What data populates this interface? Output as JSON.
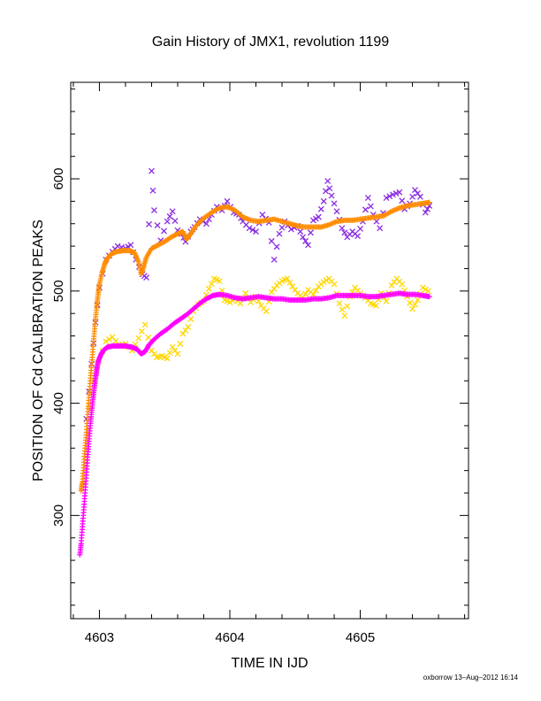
{
  "chart_data": {
    "type": "scatter",
    "title": "Gain History of JMX1, revolution 1199",
    "xlabel": "TIME IN IJD",
    "ylabel": "POSITION OF Cd CALIBRATION PEAKS",
    "xlim": [
      4602.78,
      4605.83
    ],
    "ylim": [
      208,
      686
    ],
    "x_ticks": [
      4603,
      4604,
      4605
    ],
    "y_ticks": [
      300,
      400,
      500,
      600
    ],
    "x_tick_labels": [
      "4603",
      "4604",
      "4605"
    ],
    "y_tick_labels": [
      "300",
      "400",
      "500",
      "600"
    ],
    "grid": false,
    "legend": "none",
    "series": [
      {
        "color": "#8a2be2",
        "marker": "x",
        "points": [
          [
            4602.9,
            386
          ],
          [
            4602.94,
            435
          ],
          [
            4602.97,
            472
          ],
          [
            4603.0,
            503
          ],
          [
            4603.05,
            528
          ],
          [
            4603.1,
            535
          ],
          [
            4603.14,
            540
          ],
          [
            4603.2,
            538
          ],
          [
            4603.24,
            541
          ],
          [
            4603.28,
            528
          ],
          [
            4603.33,
            515
          ],
          [
            4603.36,
            512
          ],
          [
            4603.4,
            607
          ],
          [
            4603.42,
            572
          ],
          [
            4603.47,
            545
          ],
          [
            4603.52,
            562
          ],
          [
            4603.56,
            571
          ],
          [
            4603.6,
            554
          ],
          [
            4603.63,
            551
          ],
          [
            4603.66,
            544
          ],
          [
            4603.7,
            553
          ],
          [
            4603.73,
            557
          ],
          [
            4603.77,
            564
          ],
          [
            4603.82,
            560
          ],
          [
            4603.86,
            568
          ],
          [
            4603.9,
            575
          ],
          [
            4603.94,
            572
          ],
          [
            4603.98,
            580
          ],
          [
            4604.03,
            570
          ],
          [
            4604.07,
            568
          ],
          [
            4604.1,
            562
          ],
          [
            4604.15,
            556
          ],
          [
            4604.2,
            553
          ],
          [
            4604.25,
            568
          ],
          [
            4604.3,
            561
          ],
          [
            4604.34,
            528
          ],
          [
            4604.38,
            551
          ],
          [
            4604.42,
            562
          ],
          [
            4604.47,
            555
          ],
          [
            4604.52,
            558
          ],
          [
            4604.56,
            548
          ],
          [
            4604.6,
            541
          ],
          [
            4604.64,
            563
          ],
          [
            4604.68,
            566
          ],
          [
            4604.72,
            580
          ],
          [
            4604.75,
            598
          ],
          [
            4604.78,
            585
          ],
          [
            4604.82,
            571
          ],
          [
            4604.86,
            556
          ],
          [
            4604.9,
            548
          ],
          [
            4604.94,
            553
          ],
          [
            4604.98,
            549
          ],
          [
            4605.02,
            562
          ],
          [
            4605.06,
            583
          ],
          [
            4605.1,
            568
          ],
          [
            4605.15,
            556
          ],
          [
            4605.2,
            583
          ],
          [
            4605.25,
            586
          ],
          [
            4605.3,
            588
          ],
          [
            4605.34,
            573
          ],
          [
            4605.38,
            578
          ],
          [
            4605.42,
            590
          ],
          [
            4605.46,
            584
          ],
          [
            4605.5,
            570
          ],
          [
            4605.53,
            576
          ]
        ]
      },
      {
        "color": "#ffd700",
        "marker": "x",
        "points": [
          [
            4602.92,
            398
          ],
          [
            4602.96,
            420
          ],
          [
            4603.0,
            438
          ],
          [
            4603.05,
            455
          ],
          [
            4603.1,
            459
          ],
          [
            4603.15,
            452
          ],
          [
            4603.2,
            453
          ],
          [
            4603.25,
            447
          ],
          [
            4603.3,
            458
          ],
          [
            4603.35,
            470
          ],
          [
            4603.4,
            447
          ],
          [
            4603.44,
            441
          ],
          [
            4603.48,
            442
          ],
          [
            4603.52,
            440
          ],
          [
            4603.56,
            450
          ],
          [
            4603.6,
            444
          ],
          [
            4603.64,
            462
          ],
          [
            4603.68,
            468
          ],
          [
            4603.72,
            482
          ],
          [
            4603.76,
            488
          ],
          [
            4603.8,
            491
          ],
          [
            4603.84,
            502
          ],
          [
            4603.88,
            511
          ],
          [
            4603.92,
            509
          ],
          [
            4603.96,
            492
          ],
          [
            4604.0,
            490
          ],
          [
            4604.04,
            493
          ],
          [
            4604.08,
            489
          ],
          [
            4604.12,
            498
          ],
          [
            4604.16,
            490
          ],
          [
            4604.2,
            495
          ],
          [
            4604.24,
            487
          ],
          [
            4604.28,
            482
          ],
          [
            4604.32,
            499
          ],
          [
            4604.36,
            505
          ],
          [
            4604.4,
            509
          ],
          [
            4604.44,
            511
          ],
          [
            4604.48,
            504
          ],
          [
            4604.52,
            498
          ],
          [
            4604.56,
            494
          ],
          [
            4604.6,
            501
          ],
          [
            4604.64,
            497
          ],
          [
            4604.68,
            504
          ],
          [
            4604.72,
            508
          ],
          [
            4604.76,
            511
          ],
          [
            4604.8,
            506
          ],
          [
            4604.84,
            489
          ],
          [
            4604.88,
            478
          ],
          [
            4604.92,
            495
          ],
          [
            4604.96,
            503
          ],
          [
            4605.0,
            498
          ],
          [
            4605.04,
            494
          ],
          [
            4605.08,
            489
          ],
          [
            4605.12,
            487
          ],
          [
            4605.16,
            498
          ],
          [
            4605.2,
            491
          ],
          [
            4605.24,
            505
          ],
          [
            4605.28,
            511
          ],
          [
            4605.32,
            506
          ],
          [
            4605.36,
            495
          ],
          [
            4605.4,
            484
          ],
          [
            4605.44,
            492
          ],
          [
            4605.48,
            503
          ],
          [
            4605.52,
            500
          ]
        ]
      },
      {
        "color": "#ff8c00",
        "marker": "+",
        "points": [
          [
            4602.86,
            322
          ],
          [
            4602.87,
            330
          ],
          [
            4602.88,
            345
          ],
          [
            4602.89,
            360
          ],
          [
            4602.9,
            374
          ],
          [
            4602.91,
            390
          ],
          [
            4602.92,
            405
          ],
          [
            4602.93,
            420
          ],
          [
            4602.94,
            434
          ],
          [
            4602.95,
            448
          ],
          [
            4602.96,
            462
          ],
          [
            4602.97,
            475
          ],
          [
            4602.98,
            487
          ],
          [
            4602.99,
            497
          ],
          [
            4603.0,
            506
          ],
          [
            4603.02,
            516
          ],
          [
            4603.04,
            524
          ],
          [
            4603.06,
            529
          ],
          [
            4603.09,
            533
          ],
          [
            4603.13,
            535
          ],
          [
            4603.18,
            536
          ],
          [
            4603.23,
            536
          ],
          [
            4603.27,
            534
          ],
          [
            4603.3,
            526
          ],
          [
            4603.32,
            515
          ],
          [
            4603.34,
            522
          ],
          [
            4603.36,
            530
          ],
          [
            4603.4,
            538
          ],
          [
            4603.45,
            541
          ],
          [
            4603.5,
            544
          ],
          [
            4603.55,
            548
          ],
          [
            4603.6,
            551
          ],
          [
            4603.64,
            553
          ],
          [
            4603.67,
            546
          ],
          [
            4603.7,
            551
          ],
          [
            4603.74,
            558
          ],
          [
            4603.8,
            565
          ],
          [
            4603.86,
            570
          ],
          [
            4603.92,
            574
          ],
          [
            4603.98,
            575
          ],
          [
            4604.04,
            572
          ],
          [
            4604.1,
            566
          ],
          [
            4604.16,
            563
          ],
          [
            4604.22,
            562
          ],
          [
            4604.28,
            563
          ],
          [
            4604.34,
            564
          ],
          [
            4604.4,
            562
          ],
          [
            4604.46,
            560
          ],
          [
            4604.52,
            558
          ],
          [
            4604.58,
            557
          ],
          [
            4604.64,
            557
          ],
          [
            4604.7,
            557
          ],
          [
            4604.76,
            559
          ],
          [
            4604.82,
            562
          ],
          [
            4604.88,
            563
          ],
          [
            4604.94,
            563
          ],
          [
            4605.0,
            564
          ],
          [
            4605.06,
            565
          ],
          [
            4605.12,
            566
          ],
          [
            4605.18,
            567
          ],
          [
            4605.24,
            571
          ],
          [
            4605.3,
            574
          ],
          [
            4605.36,
            576
          ],
          [
            4605.42,
            577
          ],
          [
            4605.48,
            578
          ],
          [
            4605.53,
            579
          ]
        ]
      },
      {
        "color": "#ff00ff",
        "marker": "+",
        "points": [
          [
            4602.85,
            265
          ],
          [
            4602.86,
            275
          ],
          [
            4602.87,
            290
          ],
          [
            4602.88,
            305
          ],
          [
            4602.89,
            320
          ],
          [
            4602.9,
            336
          ],
          [
            4602.91,
            352
          ],
          [
            4602.92,
            366
          ],
          [
            4602.93,
            380
          ],
          [
            4602.94,
            392
          ],
          [
            4602.95,
            403
          ],
          [
            4602.96,
            413
          ],
          [
            4602.97,
            422
          ],
          [
            4602.98,
            430
          ],
          [
            4602.99,
            437
          ],
          [
            4603.01,
            443
          ],
          [
            4603.03,
            447
          ],
          [
            4603.06,
            450
          ],
          [
            4603.1,
            451
          ],
          [
            4603.15,
            451
          ],
          [
            4603.2,
            451
          ],
          [
            4603.25,
            450
          ],
          [
            4603.29,
            448
          ],
          [
            4603.32,
            444
          ],
          [
            4603.35,
            446
          ],
          [
            4603.38,
            452
          ],
          [
            4603.42,
            457
          ],
          [
            4603.47,
            462
          ],
          [
            4603.52,
            466
          ],
          [
            4603.57,
            471
          ],
          [
            4603.62,
            475
          ],
          [
            4603.67,
            479
          ],
          [
            4603.72,
            484
          ],
          [
            4603.77,
            489
          ],
          [
            4603.82,
            493
          ],
          [
            4603.87,
            496
          ],
          [
            4603.92,
            497
          ],
          [
            4603.98,
            496
          ],
          [
            4604.04,
            494
          ],
          [
            4604.1,
            493
          ],
          [
            4604.16,
            494
          ],
          [
            4604.22,
            495
          ],
          [
            4604.28,
            494
          ],
          [
            4604.34,
            493
          ],
          [
            4604.4,
            493
          ],
          [
            4604.46,
            492
          ],
          [
            4604.52,
            492
          ],
          [
            4604.58,
            492
          ],
          [
            4604.64,
            493
          ],
          [
            4604.7,
            493
          ],
          [
            4604.76,
            494
          ],
          [
            4604.82,
            496
          ],
          [
            4604.88,
            496
          ],
          [
            4604.94,
            496
          ],
          [
            4605.0,
            496
          ],
          [
            4605.06,
            495
          ],
          [
            4605.12,
            495
          ],
          [
            4605.18,
            496
          ],
          [
            4605.24,
            497
          ],
          [
            4605.3,
            498
          ],
          [
            4605.36,
            497
          ],
          [
            4605.42,
            497
          ],
          [
            4605.48,
            496
          ],
          [
            4605.53,
            495
          ]
        ]
      }
    ]
  },
  "footer": "oxborrow 13–Aug–2012 16:14"
}
